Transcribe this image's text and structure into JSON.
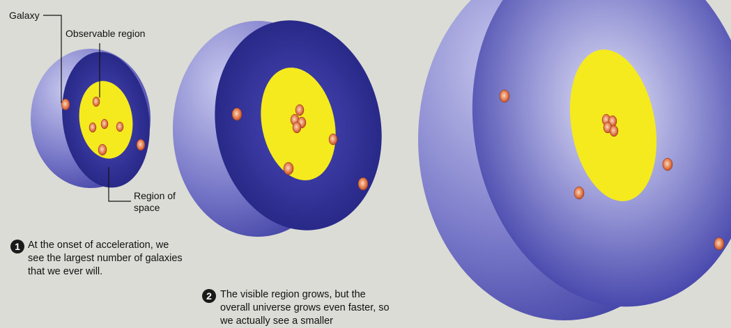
{
  "labels": {
    "observable_region": "Observable region",
    "galaxy": "Galaxy",
    "region_of_space": "Region of space"
  },
  "steps": [
    {
      "number": "1",
      "text": "At the onset of acceleration, we see the largest number of galaxies that we ever will."
    },
    {
      "number": "2",
      "text": "The visible region grows, but the overall universe grows even faster, so we actually see a smaller"
    }
  ],
  "colors": {
    "background": "#dcdcd6",
    "sphere_dark": "#23238a",
    "sphere_light": "#b4b4e6",
    "observable": "#f5ea1e",
    "galaxy": "#e06a3c"
  }
}
